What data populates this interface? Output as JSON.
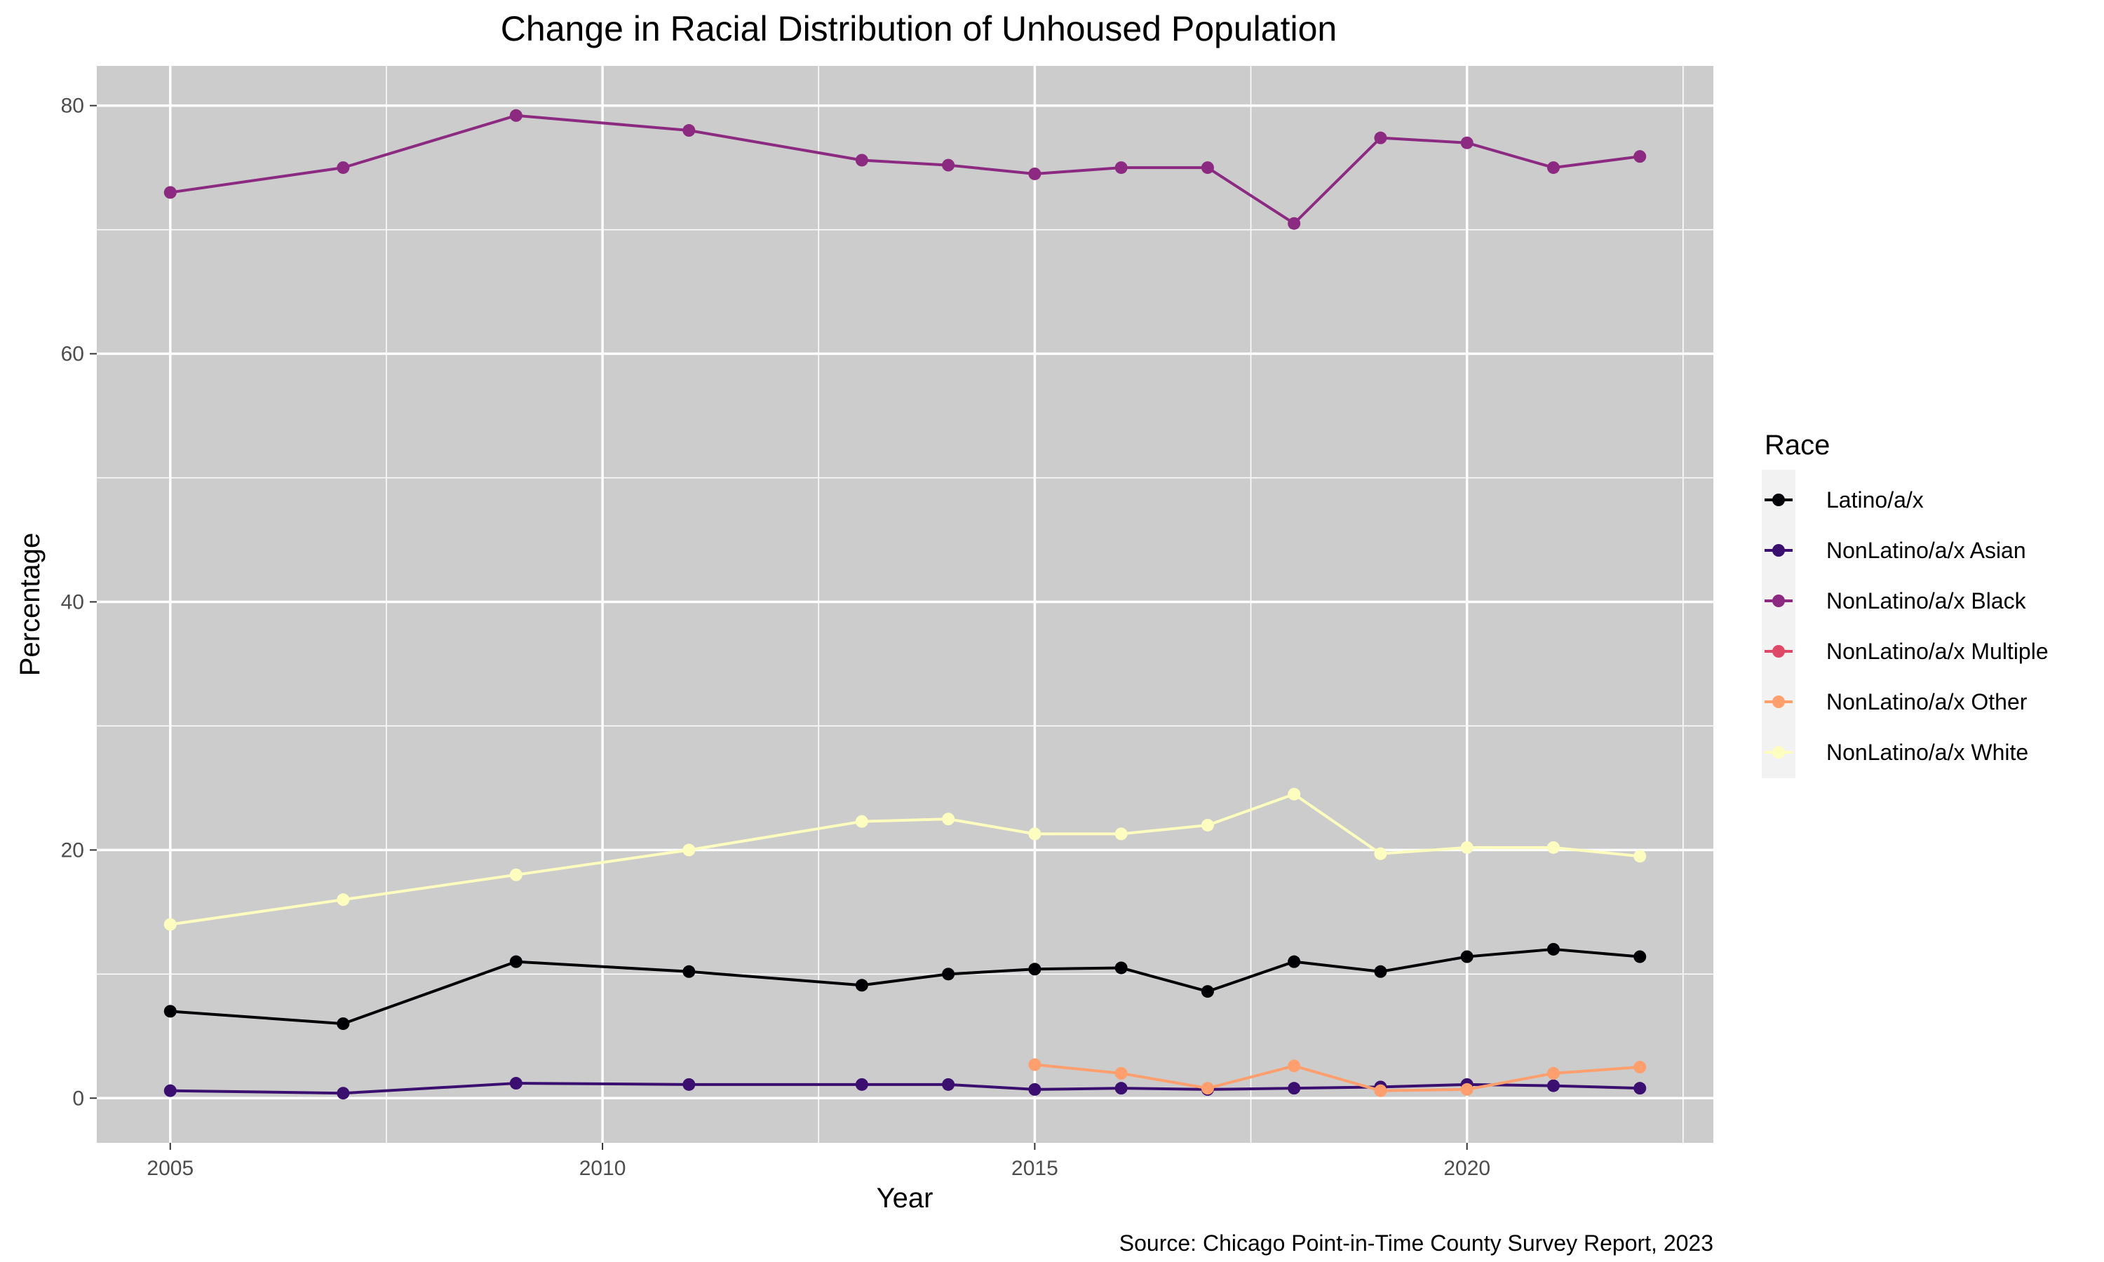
{
  "chart_data": {
    "type": "line",
    "title": "Change in Racial Distribution of Unhoused Population",
    "xlabel": "Year",
    "ylabel": "Percentage",
    "caption": "Source: Chicago Point-in-Time County Survey Report, 2023",
    "xlim": [
      2004.15,
      2022.85
    ],
    "ylim": [
      -3.6,
      83.2
    ],
    "x_ticks": [
      2005,
      2010,
      2015,
      2020
    ],
    "y_ticks": [
      0,
      20,
      40,
      60,
      80
    ],
    "grid": true,
    "legend_title": "Race",
    "legend_position": "right",
    "series": [
      {
        "name": "Latino/a/x",
        "color": "#000004",
        "x": [
          2005,
          2007,
          2009,
          2011,
          2013,
          2014,
          2015,
          2016,
          2017,
          2018,
          2019,
          2020,
          2021,
          2022
        ],
        "y": [
          7.0,
          6.0,
          11.0,
          10.2,
          9.1,
          10.0,
          10.4,
          10.5,
          8.6,
          11.0,
          10.2,
          11.4,
          12.0,
          11.4
        ]
      },
      {
        "name": "NonLatino/a/x Asian",
        "color": "#3B0F70",
        "x": [
          2005,
          2007,
          2009,
          2011,
          2013,
          2014,
          2015,
          2016,
          2017,
          2018,
          2019,
          2020,
          2021,
          2022
        ],
        "y": [
          0.6,
          0.4,
          1.2,
          1.1,
          1.1,
          1.1,
          0.7,
          0.8,
          0.7,
          0.8,
          0.9,
          1.1,
          1.0,
          0.8
        ]
      },
      {
        "name": "NonLatino/a/x Black",
        "color": "#8C2981",
        "x": [
          2005,
          2007,
          2009,
          2011,
          2013,
          2014,
          2015,
          2016,
          2017,
          2018,
          2019,
          2020,
          2021,
          2022
        ],
        "y": [
          73.0,
          75.0,
          79.2,
          78.0,
          75.6,
          75.2,
          74.5,
          75.0,
          75.0,
          70.5,
          77.4,
          77.0,
          75.0,
          75.9
        ]
      },
      {
        "name": "NonLatino/a/x Multiple",
        "color": "#DE4968",
        "x": [],
        "y": []
      },
      {
        "name": "NonLatino/a/x Other",
        "color": "#FE9F6D",
        "x": [
          2015,
          2016,
          2017,
          2018,
          2019,
          2020,
          2021,
          2022
        ],
        "y": [
          2.7,
          2.0,
          0.8,
          2.6,
          0.6,
          0.7,
          2.0,
          2.5
        ]
      },
      {
        "name": "NonLatino/a/x White",
        "color": "#FCFDBF",
        "x": [
          2005,
          2007,
          2009,
          2011,
          2013,
          2014,
          2015,
          2016,
          2017,
          2018,
          2019,
          2020,
          2021,
          2022
        ],
        "y": [
          14.0,
          16.0,
          18.0,
          20.0,
          22.3,
          22.5,
          21.3,
          21.3,
          22.0,
          24.5,
          19.7,
          20.2,
          20.2,
          19.5
        ]
      }
    ]
  }
}
